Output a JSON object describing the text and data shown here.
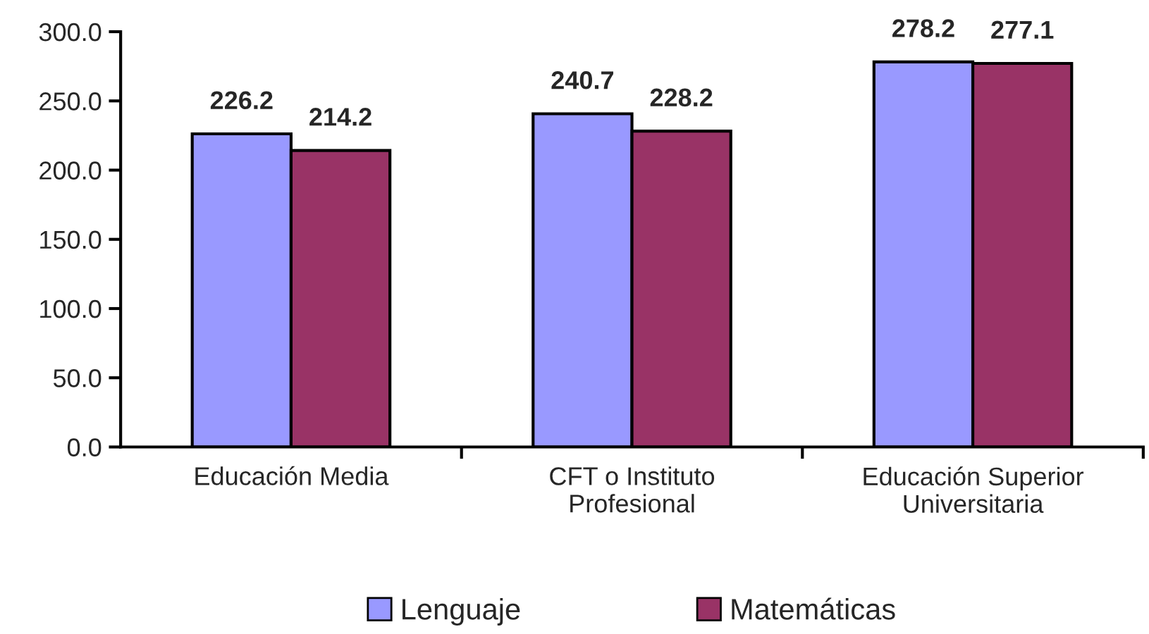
{
  "chart_data": {
    "type": "bar",
    "categories": [
      "Educación Media",
      "CFT o Instituto\nProfesional",
      "Educación Superior\nUniversitaria"
    ],
    "series": [
      {
        "name": "Lenguaje",
        "color": "#9999ff",
        "values": [
          226.2,
          240.7,
          278.2
        ]
      },
      {
        "name": "Matemáticas",
        "color": "#993366",
        "values": [
          214.2,
          228.2,
          277.1
        ]
      }
    ],
    "ylim": [
      0,
      300
    ],
    "yticks": [
      {
        "value": 0,
        "label": "0.0"
      },
      {
        "value": 50,
        "label": "50.0"
      },
      {
        "value": 100,
        "label": "100.0"
      },
      {
        "value": 150,
        "label": "150.0"
      },
      {
        "value": 200,
        "label": "200.0"
      },
      {
        "value": 250,
        "label": "250.0"
      },
      {
        "value": 300,
        "label": "300.0"
      }
    ],
    "data_labels": true,
    "grid": false,
    "legend": "bottom"
  }
}
